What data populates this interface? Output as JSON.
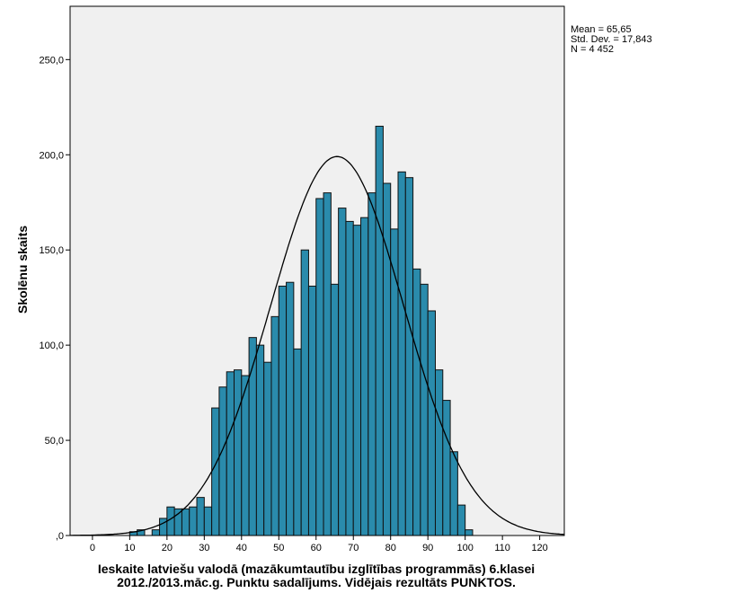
{
  "chart_data": {
    "type": "bar",
    "subtype": "histogram",
    "bin_width": 2,
    "bin_starts": [
      10,
      12,
      14,
      16,
      18,
      20,
      22,
      24,
      26,
      28,
      30,
      32,
      34,
      36,
      38,
      40,
      42,
      44,
      46,
      48,
      50,
      52,
      54,
      56,
      58,
      60,
      62,
      64,
      66,
      68,
      70,
      72,
      74,
      76,
      78,
      80,
      82,
      84,
      86,
      88,
      90,
      92,
      94,
      96,
      98,
      100
    ],
    "values": [
      2,
      3,
      0,
      3,
      9,
      15,
      14,
      14,
      15,
      20,
      15,
      67,
      78,
      86,
      87,
      84,
      104,
      100,
      91,
      115,
      131,
      133,
      98,
      150,
      131,
      177,
      180,
      132,
      172,
      165,
      163,
      167,
      180,
      215,
      185,
      161,
      191,
      188,
      140,
      132,
      118,
      87,
      71,
      44,
      16,
      3
    ],
    "normal_curve": {
      "mean": 65.65,
      "sd": 17.843,
      "n": 4452
    },
    "xlabel_lines": [
      "Ieskaite latviešu valodā (mazākumtautību izglītības programmās) 6.klasei",
      "2012./2013.māc.g. Punktu sadalījums. Vidējais rezultāts PUNKTOS."
    ],
    "ylabel": "Skolēnu skaits",
    "xlim": [
      -6,
      126.6
    ],
    "ylim": [
      0,
      278
    ],
    "x_ticks": [
      0,
      10,
      20,
      30,
      40,
      50,
      60,
      70,
      80,
      90,
      100,
      110,
      120
    ],
    "x_tick_labels": [
      "0",
      "10",
      "20",
      "30",
      "40",
      "50",
      "60",
      "70",
      "80",
      "90",
      "100",
      "110",
      "120"
    ],
    "y_ticks": [
      0,
      50,
      100,
      150,
      200,
      250
    ],
    "y_tick_labels": [
      ",0",
      "50,0",
      "100,0",
      "150,0",
      "200,0",
      "250,0"
    ],
    "legend": [
      "Mean = 65,65",
      "Std. Dev. = 17,843",
      "N = 4 452"
    ],
    "legend_position": "top-right outside",
    "grid": false,
    "colors": {
      "bar": "#2a8bac",
      "plot_bg": "#f0f0f0",
      "curve": "#000000"
    }
  }
}
